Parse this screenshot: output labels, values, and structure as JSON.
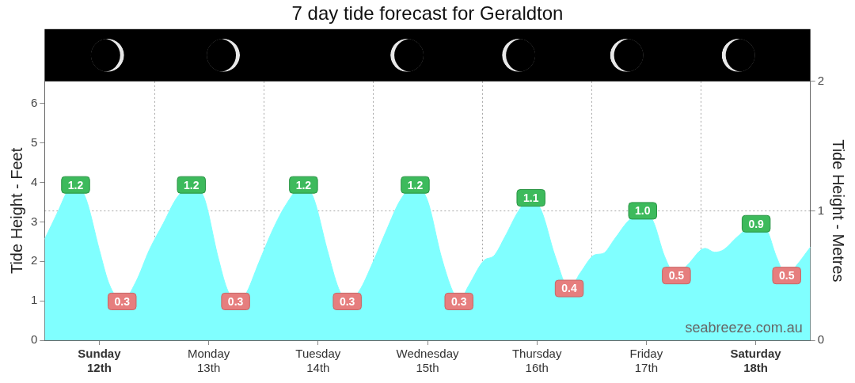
{
  "chart_data": {
    "type": "area",
    "title": "7 day tide forecast for Geraldton",
    "ylabel": "Tide Height - Feet",
    "y2label": "Tide Height - Metres",
    "annotations": [
      "seabreeze.com.au"
    ],
    "x": [
      0,
      3,
      5,
      6.8,
      9,
      12,
      14,
      16,
      17,
      20,
      23,
      26,
      29,
      32.2,
      35,
      38,
      40,
      41.9,
      44,
      47,
      50,
      53,
      56.8,
      59,
      62,
      64.5,
      66.4,
      69,
      72,
      75,
      78,
      81.3,
      84,
      87,
      89.5,
      90.9,
      93,
      96.5,
      98.5,
      101,
      104,
      106.7,
      109,
      112,
      115.1,
      117.5,
      120.7,
      122.5,
      125,
      128,
      131.2,
      133.5,
      136,
      138.6,
      141,
      144.9,
      147,
      149,
      152,
      156.1,
      158.5,
      160.5,
      162.8,
      165,
      168
    ],
    "series": [
      {
        "type": "area",
        "color": "#80ffff",
        "axis": "y2",
        "values": [
          0.78,
          1.0,
          1.15,
          1.2,
          1.1,
          0.7,
          0.45,
          0.32,
          0.3,
          0.45,
          0.7,
          0.9,
          1.1,
          1.2,
          1.1,
          0.65,
          0.4,
          0.3,
          0.35,
          0.6,
          0.85,
          1.05,
          1.2,
          1.1,
          0.7,
          0.4,
          0.3,
          0.38,
          0.6,
          0.85,
          1.08,
          1.2,
          1.08,
          0.65,
          0.38,
          0.3,
          0.42,
          0.62,
          0.65,
          0.8,
          1.0,
          1.1,
          1.0,
          0.65,
          0.4,
          0.52,
          0.66,
          0.67,
          0.78,
          0.92,
          1.0,
          0.92,
          0.65,
          0.5,
          0.58,
          0.71,
          0.68,
          0.7,
          0.8,
          0.9,
          0.85,
          0.65,
          0.5,
          0.58,
          0.72
        ],
        "value_labels": [
          null,
          null,
          null,
          "1.2",
          null,
          null,
          null,
          null,
          "0.3",
          null,
          null,
          null,
          null,
          "1.2",
          null,
          null,
          null,
          "0.3",
          null,
          null,
          null,
          null,
          "1.2",
          null,
          null,
          null,
          "0.3",
          null,
          null,
          null,
          null,
          "1.2",
          null,
          null,
          null,
          "0.3",
          null,
          null,
          null,
          null,
          null,
          "1.1",
          null,
          null,
          "0.4",
          null,
          null,
          null,
          null,
          null,
          "1.0",
          null,
          null,
          "0.5",
          null,
          null,
          null,
          null,
          null,
          "0.9",
          null,
          null,
          "0.5",
          null,
          null
        ]
      }
    ],
    "data_labels": true,
    "xlim": [
      0,
      168
    ],
    "xticks": [
      {
        "value": 12,
        "label": "Sunday 12th"
      },
      {
        "value": 36,
        "label": "Monday 13th"
      },
      {
        "value": 60,
        "label": "Tuesday 14th"
      },
      {
        "value": 84,
        "label": "Wednesday 15th"
      },
      {
        "value": 108,
        "label": "Thursday 16th"
      },
      {
        "value": 132,
        "label": "Friday 17th"
      },
      {
        "value": 156,
        "label": "Saturday 18th"
      }
    ],
    "ylim": [
      0,
      6.56
    ],
    "yticks": [
      0,
      1,
      2,
      3,
      4,
      5,
      6
    ],
    "y2lim": [
      0,
      2
    ],
    "y2ticks": [
      0,
      1,
      2
    ],
    "grid": true
  }
}
